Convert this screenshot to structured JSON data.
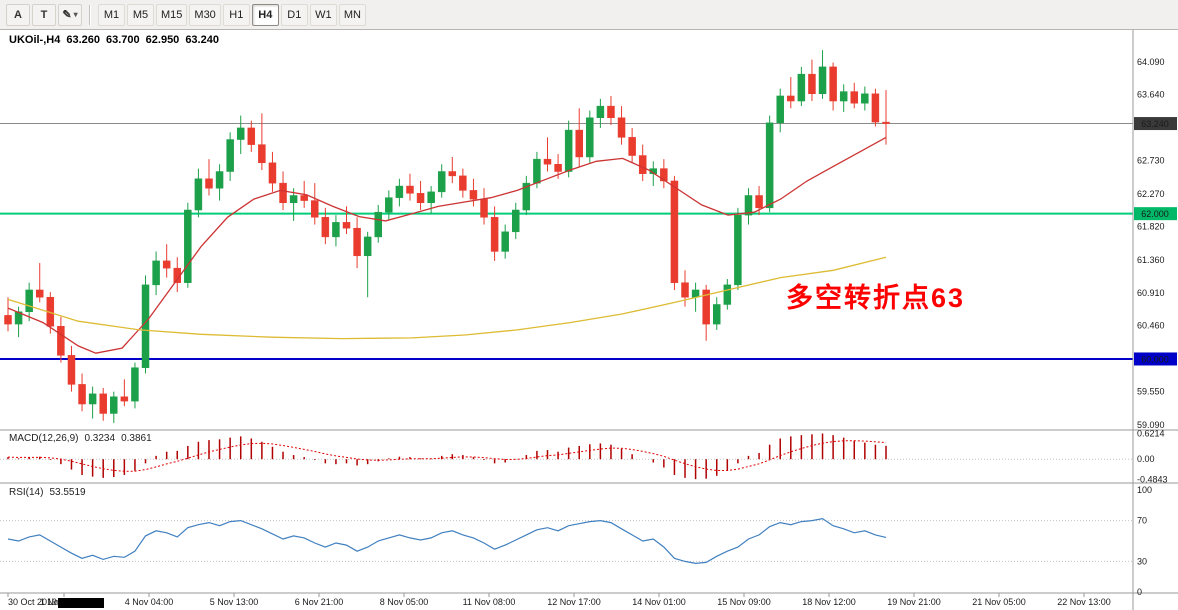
{
  "toolbar": {
    "tools": [
      {
        "label": "A"
      },
      {
        "label": "T"
      },
      {
        "label": "✎"
      }
    ],
    "dropdown_caret": "▾",
    "timeframes": [
      "M1",
      "M5",
      "M15",
      "M30",
      "H1",
      "H4",
      "D1",
      "W1",
      "MN"
    ],
    "active_timeframe": "H4"
  },
  "chart": {
    "symbol_period": "UKOil-,H4",
    "open": "63.260",
    "high": "63.700",
    "low": "62.950",
    "close": "63.240"
  },
  "main_chart": {
    "annotation": "多空转折点63",
    "annotation_color": "#FF0000"
  },
  "macd_label": {
    "name": "MACD(12,26,9)",
    "value": "0.3234",
    "signal": "0.3861"
  },
  "rsi_label": {
    "name": "RSI(14)",
    "value": "53.5519"
  },
  "chart_data": {
    "type": "candlestick",
    "title": "UKOil-,H4",
    "ylim": [
      59.05,
      64.39
    ],
    "grid": false,
    "price_axis_ticks": [
      {
        "value": 64.09,
        "text": "64.090"
      },
      {
        "value": 63.64,
        "text": "63.640"
      },
      {
        "value": 62.73,
        "text": "62.730"
      },
      {
        "value": 62.27,
        "text": "62.270"
      },
      {
        "value": 61.82,
        "text": "61.820"
      },
      {
        "value": 61.36,
        "text": "61.360"
      },
      {
        "value": 60.91,
        "text": "60.910"
      },
      {
        "value": 60.46,
        "text": "60.460"
      },
      {
        "value": 59.55,
        "text": "59.550"
      },
      {
        "value": 59.09,
        "text": "59.090"
      }
    ],
    "hlines": [
      {
        "price": 63.24,
        "label": "63.240",
        "line_color": "#8a8a8a",
        "badge_color": "#3a3a3a",
        "text_color": "#ffffff",
        "width": 1
      },
      {
        "price": 62.0,
        "label": "62.000",
        "line_color": "#00cc7a",
        "badge_color": "#00b868",
        "text_color": "#ffffff",
        "width": 2
      },
      {
        "price": 60.0,
        "label": "60.000",
        "line_color": "#0000c8",
        "badge_color": "#0000c8",
        "text_color": "#ffffff",
        "width": 2
      }
    ],
    "candles": [
      [
        60.6,
        60.85,
        60.38,
        60.48
      ],
      [
        60.48,
        60.72,
        60.3,
        60.65
      ],
      [
        60.65,
        61.05,
        60.52,
        60.95
      ],
      [
        60.95,
        61.32,
        60.78,
        60.85
      ],
      [
        60.85,
        60.92,
        60.35,
        60.45
      ],
      [
        60.45,
        60.58,
        59.95,
        60.05
      ],
      [
        60.05,
        60.18,
        59.55,
        59.65
      ],
      [
        59.65,
        59.8,
        59.28,
        59.38
      ],
      [
        59.38,
        59.62,
        59.18,
        59.52
      ],
      [
        59.52,
        59.6,
        59.15,
        59.25
      ],
      [
        59.25,
        59.55,
        59.12,
        59.48
      ],
      [
        59.48,
        59.72,
        59.35,
        59.42
      ],
      [
        59.42,
        59.95,
        59.32,
        59.88
      ],
      [
        59.88,
        61.15,
        59.8,
        61.02
      ],
      [
        61.02,
        61.48,
        60.88,
        61.35
      ],
      [
        61.35,
        61.58,
        61.12,
        61.25
      ],
      [
        61.25,
        61.4,
        60.92,
        61.05
      ],
      [
        61.05,
        62.15,
        60.98,
        62.05
      ],
      [
        62.05,
        62.62,
        61.95,
        62.48
      ],
      [
        62.48,
        62.75,
        62.25,
        62.35
      ],
      [
        62.35,
        62.68,
        62.18,
        62.58
      ],
      [
        62.58,
        63.12,
        62.45,
        63.02
      ],
      [
        63.02,
        63.35,
        62.82,
        63.18
      ],
      [
        63.18,
        63.28,
        62.85,
        62.95
      ],
      [
        62.95,
        63.38,
        62.6,
        62.7
      ],
      [
        62.7,
        62.85,
        62.3,
        62.42
      ],
      [
        62.42,
        62.58,
        62.05,
        62.15
      ],
      [
        62.15,
        62.35,
        61.9,
        62.25
      ],
      [
        62.25,
        62.45,
        62.08,
        62.18
      ],
      [
        62.18,
        62.42,
        61.85,
        61.95
      ],
      [
        61.95,
        62.08,
        61.58,
        61.68
      ],
      [
        61.68,
        61.98,
        61.55,
        61.88
      ],
      [
        61.88,
        62.1,
        61.72,
        61.8
      ],
      [
        61.8,
        61.95,
        61.25,
        61.42
      ],
      [
        61.42,
        61.75,
        60.85,
        61.68
      ],
      [
        61.68,
        62.12,
        61.6,
        62.02
      ],
      [
        62.02,
        62.32,
        61.92,
        62.22
      ],
      [
        62.22,
        62.48,
        62.1,
        62.38
      ],
      [
        62.38,
        62.55,
        62.18,
        62.28
      ],
      [
        62.28,
        62.45,
        62.05,
        62.15
      ],
      [
        62.15,
        62.38,
        62.0,
        62.3
      ],
      [
        62.3,
        62.68,
        62.22,
        62.58
      ],
      [
        62.58,
        62.78,
        62.42,
        62.52
      ],
      [
        62.52,
        62.62,
        62.22,
        62.32
      ],
      [
        62.32,
        62.48,
        62.1,
        62.2
      ],
      [
        62.2,
        62.35,
        61.85,
        61.95
      ],
      [
        61.95,
        62.1,
        61.35,
        61.48
      ],
      [
        61.48,
        61.85,
        61.38,
        61.75
      ],
      [
        61.75,
        62.15,
        61.65,
        62.05
      ],
      [
        62.05,
        62.52,
        61.98,
        62.42
      ],
      [
        62.42,
        62.85,
        62.35,
        62.75
      ],
      [
        62.75,
        63.05,
        62.58,
        62.68
      ],
      [
        62.68,
        62.82,
        62.48,
        62.58
      ],
      [
        62.58,
        63.28,
        62.5,
        63.15
      ],
      [
        63.15,
        63.45,
        62.65,
        62.78
      ],
      [
        62.78,
        63.42,
        62.7,
        63.32
      ],
      [
        63.32,
        63.58,
        63.18,
        63.48
      ],
      [
        63.48,
        63.62,
        63.22,
        63.32
      ],
      [
        63.32,
        63.48,
        62.95,
        63.05
      ],
      [
        63.05,
        63.18,
        62.7,
        62.8
      ],
      [
        62.8,
        62.95,
        62.45,
        62.55
      ],
      [
        62.55,
        62.72,
        62.38,
        62.62
      ],
      [
        62.62,
        62.75,
        62.35,
        62.45
      ],
      [
        62.45,
        62.52,
        60.95,
        61.05
      ],
      [
        61.05,
        61.22,
        60.72,
        60.85
      ],
      [
        60.85,
        61.05,
        60.65,
        60.95
      ],
      [
        60.95,
        61.02,
        60.25,
        60.48
      ],
      [
        60.48,
        60.85,
        60.4,
        60.75
      ],
      [
        60.75,
        61.1,
        60.68,
        61.02
      ],
      [
        61.02,
        62.08,
        60.95,
        61.98
      ],
      [
        61.98,
        62.35,
        61.85,
        62.25
      ],
      [
        62.25,
        62.38,
        61.98,
        62.08
      ],
      [
        62.08,
        63.35,
        62.02,
        63.25
      ],
      [
        63.25,
        63.72,
        63.12,
        63.62
      ],
      [
        63.62,
        63.88,
        63.45,
        63.55
      ],
      [
        63.55,
        64.02,
        63.48,
        63.92
      ],
      [
        63.92,
        64.12,
        63.55,
        63.65
      ],
      [
        63.65,
        64.25,
        63.58,
        64.02
      ],
      [
        64.02,
        64.08,
        63.42,
        63.55
      ],
      [
        63.55,
        63.78,
        63.4,
        63.68
      ],
      [
        63.68,
        63.8,
        63.45,
        63.52
      ],
      [
        63.52,
        63.75,
        63.42,
        63.65
      ],
      [
        63.65,
        63.72,
        63.2,
        63.26
      ],
      [
        63.26,
        63.7,
        62.95,
        63.24
      ]
    ],
    "ma_fast": {
      "color": "#cc3333",
      "points": [
        [
          0,
          60.7
        ],
        [
          0.04,
          60.5
        ],
        [
          0.08,
          60.18
        ],
        [
          0.1,
          60.08
        ],
        [
          0.13,
          60.15
        ],
        [
          0.16,
          60.55
        ],
        [
          0.19,
          61.05
        ],
        [
          0.22,
          61.55
        ],
        [
          0.25,
          61.95
        ],
        [
          0.28,
          62.2
        ],
        [
          0.31,
          62.32
        ],
        [
          0.34,
          62.26
        ],
        [
          0.37,
          62.1
        ],
        [
          0.4,
          61.96
        ],
        [
          0.43,
          61.9
        ],
        [
          0.46,
          62.0
        ],
        [
          0.49,
          62.1
        ],
        [
          0.52,
          62.16
        ],
        [
          0.55,
          62.22
        ],
        [
          0.58,
          62.32
        ],
        [
          0.61,
          62.46
        ],
        [
          0.64,
          62.6
        ],
        [
          0.67,
          62.72
        ],
        [
          0.7,
          62.76
        ],
        [
          0.73,
          62.6
        ],
        [
          0.76,
          62.36
        ],
        [
          0.79,
          62.12
        ],
        [
          0.82,
          61.98
        ],
        [
          0.85,
          62.02
        ],
        [
          0.88,
          62.2
        ],
        [
          0.91,
          62.45
        ],
        [
          0.94,
          62.65
        ],
        [
          0.97,
          62.85
        ],
        [
          1.0,
          63.05
        ]
      ]
    },
    "ma_slow": {
      "color": "#ddbb33",
      "points": [
        [
          0,
          60.82
        ],
        [
          0.08,
          60.52
        ],
        [
          0.15,
          60.4
        ],
        [
          0.22,
          60.34
        ],
        [
          0.3,
          60.3
        ],
        [
          0.38,
          60.28
        ],
        [
          0.46,
          60.29
        ],
        [
          0.52,
          60.33
        ],
        [
          0.58,
          60.4
        ],
        [
          0.64,
          60.5
        ],
        [
          0.7,
          60.62
        ],
        [
          0.76,
          60.78
        ],
        [
          0.82,
          60.95
        ],
        [
          0.88,
          61.12
        ],
        [
          0.94,
          61.22
        ],
        [
          1.0,
          61.4
        ]
      ]
    },
    "macd": {
      "current": 0.3234,
      "signal_current": 0.3861,
      "axis": [
        {
          "value": 0.6214,
          "text": "0.6214"
        },
        {
          "value": 0,
          "text": "0.00"
        },
        {
          "value": -0.4843,
          "text": "-0.4843"
        }
      ],
      "values": [
        0.05,
        0.02,
        0.04,
        0.06,
        -0.02,
        -0.12,
        -0.25,
        -0.38,
        -0.42,
        -0.45,
        -0.43,
        -0.38,
        -0.28,
        -0.1,
        0.08,
        0.18,
        0.2,
        0.32,
        0.42,
        0.46,
        0.48,
        0.52,
        0.55,
        0.5,
        0.42,
        0.3,
        0.18,
        0.1,
        0.05,
        -0.02,
        -0.1,
        -0.12,
        -0.1,
        -0.15,
        -0.12,
        -0.05,
        0.02,
        0.06,
        0.05,
        0.02,
        0.01,
        0.08,
        0.12,
        0.1,
        0.05,
        -0.02,
        -0.1,
        -0.08,
        0.0,
        0.1,
        0.2,
        0.22,
        0.18,
        0.28,
        0.32,
        0.36,
        0.38,
        0.35,
        0.25,
        0.12,
        0.0,
        -0.08,
        -0.2,
        -0.38,
        -0.45,
        -0.48,
        -0.47,
        -0.4,
        -0.28,
        -0.1,
        0.08,
        0.15,
        0.35,
        0.5,
        0.55,
        0.58,
        0.6,
        0.62,
        0.58,
        0.52,
        0.45,
        0.4,
        0.35,
        0.3234
      ]
    },
    "rsi": {
      "current": 53.5519,
      "levels": [
        70,
        30
      ],
      "axis": [
        {
          "value": 100,
          "text": "100"
        },
        {
          "value": 70,
          "text": "70"
        },
        {
          "value": 30,
          "text": "30"
        },
        {
          "value": 0,
          "text": "0"
        }
      ],
      "values": [
        52,
        50,
        54,
        56,
        50,
        44,
        38,
        33,
        36,
        32,
        35,
        34,
        40,
        55,
        60,
        58,
        54,
        63,
        66,
        68,
        65,
        69,
        70,
        66,
        62,
        57,
        52,
        55,
        53,
        48,
        44,
        48,
        46,
        40,
        44,
        50,
        53,
        56,
        53,
        51,
        53,
        58,
        60,
        56,
        53,
        48,
        42,
        46,
        51,
        56,
        61,
        63,
        60,
        65,
        67,
        69,
        70,
        68,
        62,
        56,
        50,
        52,
        44,
        33,
        30,
        28,
        29,
        35,
        40,
        44,
        52,
        56,
        64,
        68,
        66,
        69,
        70,
        72,
        65,
        62,
        58,
        60,
        56,
        53.55
      ]
    },
    "time_labels": [
      "30 Oct 2019",
      "1 Nov 00:00",
      "4 Nov 04:00",
      "5 Nov 13:00",
      "6 Nov 21:00",
      "8 Nov 05:00",
      "11 Nov 08:00",
      "12 Nov 17:00",
      "14 Nov 01:00",
      "15 Nov 09:00",
      "18 Nov 12:00",
      "19 Nov 21:00",
      "21 Nov 05:00",
      "22 Nov 13:00"
    ],
    "colors": {
      "up": "#1ca049",
      "down": "#e93c2f",
      "macd_hist": "#b00000",
      "macd_signal": "#e00000",
      "rsi": "#4080c0",
      "separator": "#9a9a9a",
      "level_line": "#c4c4c4"
    }
  }
}
